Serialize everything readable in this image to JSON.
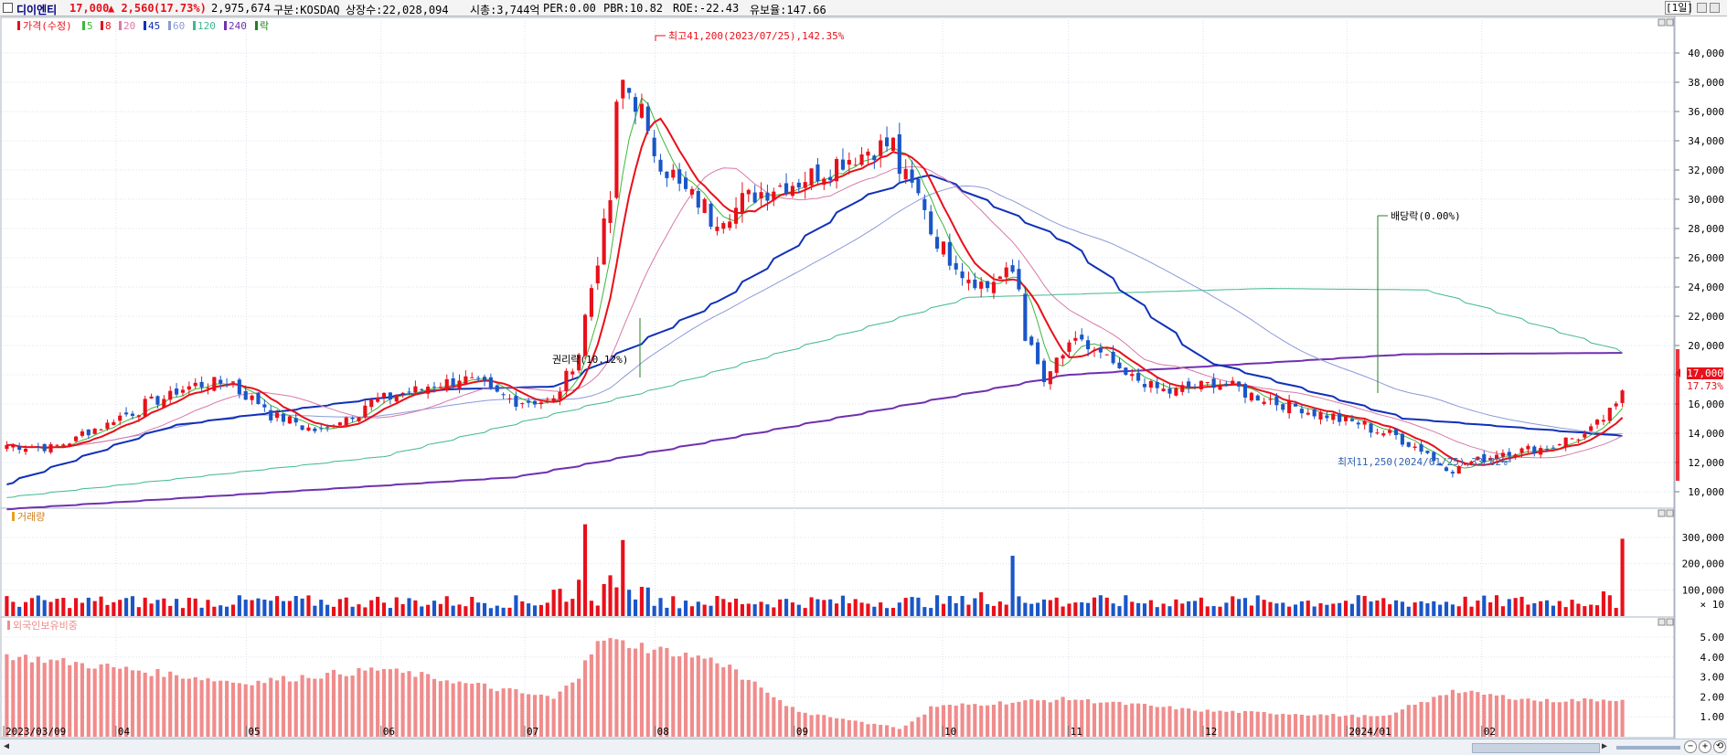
{
  "header": {
    "stock_name": "디이엔티",
    "price": "17,000",
    "change": "▲ 2,560",
    "change_pct": "(17.73%)",
    "volume": "2,975,674",
    "market": "구분:KOSDAQ",
    "shares": "상장수:22,028,094",
    "market_cap": "시총:3,744억",
    "per": "PER:0.00",
    "pbr": "PBR:10.82",
    "roe": "ROE:-22.43",
    "turnover": "유보율:147.66",
    "period": "[1일]"
  },
  "colors": {
    "up": "#e8101a",
    "down": "#1a56c8",
    "ma5": "#3cb83c",
    "ma8": "#e8101a",
    "ma20": "#d77aa8",
    "ma45": "#1030b8",
    "ma60": "#8c9ad8",
    "ma120": "#40b890",
    "ma240": "#7030b0",
    "grid": "#dbe3ee",
    "foreign_bar": "#f08c8c"
  },
  "legend": {
    "price": "가격(수정)",
    "items": [
      {
        "label": "5",
        "color": "#3cb83c"
      },
      {
        "label": "8",
        "color": "#e8101a"
      },
      {
        "label": "20",
        "color": "#d77aa8"
      },
      {
        "label": "45",
        "color": "#1030b8"
      },
      {
        "label": "60",
        "color": "#8c9ad8"
      },
      {
        "label": "120",
        "color": "#40b890"
      },
      {
        "label": "240",
        "color": "#7030b0"
      },
      {
        "label": "락",
        "color": "#208020"
      }
    ],
    "volume": "거래량",
    "foreign": "외국인보유비중"
  },
  "annotations": {
    "high": "최고41,200(2023/07/25),142.35%",
    "low": "최저11,250(2024/01/25),33.82%",
    "rights": "권리락(10.12%)",
    "dividend": "배당락(0.00%)",
    "current_price": "17,000",
    "current_pct": "17.73%"
  },
  "chart_data": [
    {
      "type": "candlestick",
      "title": "디이엔티",
      "x_labels": [
        "2023/03/09",
        "04",
        "05",
        "06",
        "07",
        "08",
        "09",
        "10",
        "11",
        "12",
        "2024/01",
        "02"
      ],
      "ylim": [
        9000,
        42000
      ],
      "y_ticks": [
        "10,000",
        "12,000",
        "14,000",
        "16,000",
        "18,000",
        "20,000",
        "22,000",
        "24,000",
        "26,000",
        "28,000",
        "30,000",
        "32,000",
        "34,000",
        "36,000",
        "38,000",
        "40,000"
      ],
      "close_points": [
        [
          "2023/03/09",
          13200
        ],
        [
          "2023/03/20",
          13000
        ],
        [
          "2023/03/31",
          14600
        ],
        [
          "2023/04/10",
          16000
        ],
        [
          "2023/04/20",
          17300
        ],
        [
          "2023/04/28",
          17500
        ],
        [
          "2023/05/08",
          15200
        ],
        [
          "2023/05/18",
          14100
        ],
        [
          "2023/05/31",
          16300
        ],
        [
          "2023/06/09",
          17000
        ],
        [
          "2023/06/19",
          17800
        ],
        [
          "2023/06/30",
          16200
        ],
        [
          "2023/07/10",
          16200
        ],
        [
          "2023/07/17",
          22000
        ],
        [
          "2023/07/25",
          38000
        ],
        [
          "2023/08/03",
          32000
        ],
        [
          "2023/08/14",
          28600
        ],
        [
          "2023/08/24",
          30500
        ],
        [
          "2023/09/04",
          31500
        ],
        [
          "2023/09/14",
          33000
        ],
        [
          "2023/09/22",
          33800
        ],
        [
          "2023/10/05",
          26000
        ],
        [
          "2023/10/13",
          24000
        ],
        [
          "2023/10/19",
          25000
        ],
        [
          "2023/10/26",
          17500
        ],
        [
          "2023/11/03",
          20500
        ],
        [
          "2023/11/13",
          18000
        ],
        [
          "2023/11/23",
          16800
        ],
        [
          "2023/12/04",
          17500
        ],
        [
          "2023/12/14",
          16400
        ],
        [
          "2023/12/26",
          15400
        ],
        [
          "2024/01/05",
          14600
        ],
        [
          "2024/01/15",
          13500
        ],
        [
          "2024/01/25",
          11500
        ],
        [
          "2024/02/05",
          12700
        ],
        [
          "2024/02/15",
          13000
        ],
        [
          "2024/02/26",
          14200
        ],
        [
          "2024/03/04",
          17000
        ]
      ],
      "ma_points": {
        "ma45": [
          [
            "2023/03/09",
            10500
          ],
          [
            "2023/04/15",
            14500
          ],
          [
            "2023/06/15",
            17000
          ],
          [
            "2023/07/10",
            17200
          ],
          [
            "2023/08/15",
            23000
          ],
          [
            "2023/09/15",
            30000
          ],
          [
            "2023/10/01",
            31800
          ],
          [
            "2023/11/01",
            27000
          ],
          [
            "2023/12/01",
            19000
          ],
          [
            "2024/01/15",
            15000
          ],
          [
            "2024/03/04",
            13800
          ]
        ],
        "ma120": [
          [
            "2023/03/09",
            9600
          ],
          [
            "2023/06/01",
            12400
          ],
          [
            "2023/08/01",
            17000
          ],
          [
            "2023/10/10",
            23300
          ],
          [
            "2023/12/15",
            23900
          ],
          [
            "2024/01/20",
            23800
          ],
          [
            "2024/03/04",
            19500
          ]
        ],
        "ma240": [
          [
            "2023/03/09",
            8800
          ],
          [
            "2023/07/01",
            11000
          ],
          [
            "2023/09/01",
            14500
          ],
          [
            "2023/11/01",
            18000
          ],
          [
            "2024/01/15",
            19400
          ],
          [
            "2024/03/04",
            19500
          ]
        ]
      },
      "legend_placement": "top-left"
    },
    {
      "type": "bar",
      "title": "거래량",
      "y_ticks": [
        "300,000",
        "200,000",
        "100,000"
      ],
      "y_unit": "× 10",
      "peaks": [
        [
          "2023/07/17",
          350000
        ],
        [
          "2023/07/25",
          290000
        ],
        [
          "2023/10/19",
          230000
        ],
        [
          "2024/03/04",
          295000
        ]
      ]
    },
    {
      "type": "bar",
      "title": "외국인보유비중",
      "y_ticks": [
        "5.00",
        "4.00",
        "3.00",
        "2.00",
        "1.00"
      ],
      "points": [
        [
          "2023/03/09",
          4.1
        ],
        [
          "2023/04/01",
          3.5
        ],
        [
          "2023/05/01",
          2.7
        ],
        [
          "2023/06/01",
          3.4
        ],
        [
          "2023/07/10",
          1.9
        ],
        [
          "2023/07/20",
          4.9
        ],
        [
          "2023/08/15",
          3.8
        ],
        [
          "2023/09/01",
          1.3
        ],
        [
          "2023/09/25",
          0.4
        ],
        [
          "2023/10/01",
          1.5
        ],
        [
          "2023/11/01",
          1.9
        ],
        [
          "2023/12/01",
          1.3
        ],
        [
          "2024/01/10",
          1.0
        ],
        [
          "2024/01/25",
          2.3
        ],
        [
          "2024/02/15",
          1.8
        ],
        [
          "2024/03/04",
          1.9
        ]
      ]
    }
  ]
}
